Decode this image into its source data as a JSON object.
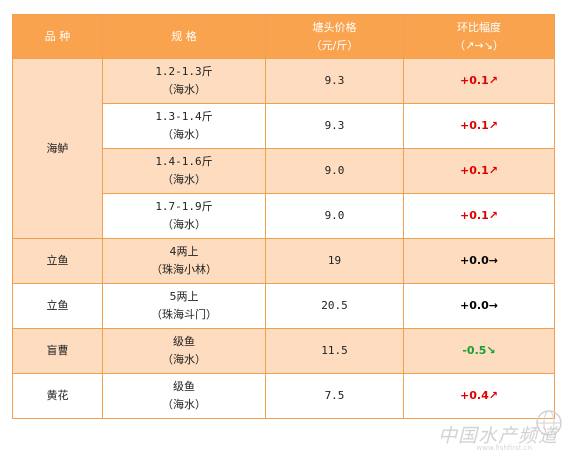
{
  "header": {
    "variety": "品  种",
    "spec": "规  格",
    "price_line1": "塘头价格",
    "price_line2": "（元/斤）",
    "change_line1": "环比幅度",
    "change_line2": "（↗→↘）"
  },
  "rows": [
    {
      "variety": "海鲈",
      "spec1": "1.2-1.3斤",
      "spec2": "（海水）",
      "price": "9.3",
      "change": "+0.1↗",
      "direction": "up"
    },
    {
      "variety": "",
      "spec1": "1.3-1.4斤",
      "spec2": "（海水）",
      "price": "9.3",
      "change": "+0.1↗",
      "direction": "up"
    },
    {
      "variety": "",
      "spec1": "1.4-1.6斤",
      "spec2": "（海水）",
      "price": "9.0",
      "change": "+0.1↗",
      "direction": "up"
    },
    {
      "variety": "",
      "spec1": "1.7-1.9斤",
      "spec2": "（海水）",
      "price": "9.0",
      "change": "+0.1↗",
      "direction": "up"
    },
    {
      "variety": "立鱼",
      "spec1": "4两上",
      "spec2": "（珠海小林）",
      "price": "19",
      "change": "+0.0→",
      "direction": "flat"
    },
    {
      "variety": "立鱼",
      "spec1": "5两上",
      "spec2": "（珠海斗门）",
      "price": "20.5",
      "change": "+0.0→",
      "direction": "flat"
    },
    {
      "variety": "盲曹",
      "spec1": "级鱼",
      "spec2": "（海水）",
      "price": "11.5",
      "change": "-0.5↘",
      "direction": "down"
    },
    {
      "variety": "黄花",
      "spec1": "级鱼",
      "spec2": "（海水）",
      "price": "7.5",
      "change": "+0.4↗",
      "direction": "up"
    }
  ],
  "watermark": {
    "text": "中国水产频道",
    "url": "www.fishfirst.cn"
  },
  "colors": {
    "header_bg": "#f9a34f",
    "row_orange": "#fddcbf",
    "border": "#f0a050",
    "up": "#e00000",
    "down": "#16a030"
  }
}
